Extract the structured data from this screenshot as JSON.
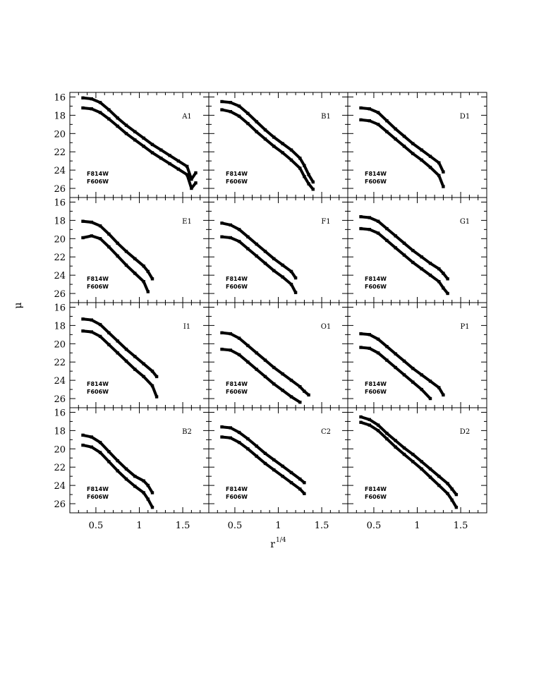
{
  "chart_data": {
    "type": "scatter",
    "xlabel": "r",
    "xlabel_superscript": "1/4",
    "ylabel": "μ",
    "xlim": [
      0.2,
      1.8
    ],
    "ylim": [
      27,
      15.5
    ],
    "y_inverted": true,
    "grid": false,
    "x_ticks": [
      "0.5",
      "1",
      "1.5"
    ],
    "x_tick_values": [
      0.5,
      1,
      1.5
    ],
    "y_ticks": [
      "16",
      "18",
      "20",
      "22",
      "24",
      "26"
    ],
    "y_tick_values": [
      16,
      18,
      20,
      22,
      24,
      26
    ],
    "panels": [
      {
        "name": "A1",
        "filters": [
          "F814W",
          "F606W"
        ],
        "series": [
          {
            "x": [
              0.35,
              0.45,
              0.55,
              0.65,
              0.75,
              0.85,
              0.95,
              1.05,
              1.15,
              1.25,
              1.35,
              1.45,
              1.55,
              1.6,
              1.65
            ],
            "y": [
              16.1,
              16.2,
              16.6,
              17.4,
              18.3,
              19.1,
              19.8,
              20.5,
              21.2,
              21.8,
              22.4,
              23.0,
              23.6,
              25.0,
              24.3
            ]
          },
          {
            "x": [
              0.35,
              0.45,
              0.55,
              0.65,
              0.75,
              0.85,
              0.95,
              1.05,
              1.15,
              1.25,
              1.35,
              1.45,
              1.55,
              1.6,
              1.65
            ],
            "y": [
              17.2,
              17.3,
              17.7,
              18.4,
              19.2,
              20.0,
              20.7,
              21.4,
              22.1,
              22.7,
              23.3,
              23.9,
              24.5,
              26.0,
              25.4
            ]
          }
        ]
      },
      {
        "name": "B1",
        "filters": [
          "F814W",
          "F606W"
        ],
        "series": [
          {
            "x": [
              0.35,
              0.45,
              0.55,
              0.65,
              0.75,
              0.85,
              0.95,
              1.05,
              1.15,
              1.25,
              1.3,
              1.35,
              1.4
            ],
            "y": [
              16.5,
              16.6,
              17.0,
              17.8,
              18.7,
              19.6,
              20.4,
              21.1,
              21.8,
              22.7,
              23.5,
              24.5,
              25.3
            ]
          },
          {
            "x": [
              0.35,
              0.45,
              0.55,
              0.65,
              0.75,
              0.85,
              0.95,
              1.05,
              1.15,
              1.25,
              1.3,
              1.35,
              1.4
            ],
            "y": [
              17.4,
              17.6,
              18.1,
              18.9,
              19.8,
              20.6,
              21.4,
              22.1,
              22.9,
              23.8,
              24.7,
              25.5,
              26.1
            ]
          }
        ]
      },
      {
        "name": "D1",
        "filters": [
          "F814W",
          "F606W"
        ],
        "series": [
          {
            "x": [
              0.35,
              0.45,
              0.55,
              0.65,
              0.75,
              0.85,
              0.95,
              1.05,
              1.15,
              1.25,
              1.3
            ],
            "y": [
              17.2,
              17.3,
              17.7,
              18.6,
              19.5,
              20.3,
              21.1,
              21.8,
              22.5,
              23.2,
              24.2
            ]
          },
          {
            "x": [
              0.35,
              0.45,
              0.55,
              0.65,
              0.75,
              0.85,
              0.95,
              1.05,
              1.15,
              1.25,
              1.3
            ],
            "y": [
              18.5,
              18.6,
              19.0,
              19.8,
              20.6,
              21.4,
              22.2,
              22.9,
              23.7,
              24.6,
              25.8
            ]
          }
        ]
      },
      {
        "name": "E1",
        "filters": [
          "F814W",
          "F606W"
        ],
        "series": [
          {
            "x": [
              0.35,
              0.45,
              0.55,
              0.65,
              0.75,
              0.85,
              0.95,
              1.05,
              1.1,
              1.15
            ],
            "y": [
              18.1,
              18.2,
              18.6,
              19.5,
              20.5,
              21.4,
              22.2,
              23.0,
              23.6,
              24.4
            ]
          },
          {
            "x": [
              0.35,
              0.45,
              0.55,
              0.65,
              0.75,
              0.85,
              0.95,
              1.05,
              1.1
            ],
            "y": [
              19.9,
              19.7,
              20.0,
              20.9,
              21.9,
              22.9,
              23.8,
              24.7,
              25.8
            ]
          }
        ]
      },
      {
        "name": "F1",
        "filters": [
          "F814W",
          "F606W"
        ],
        "series": [
          {
            "x": [
              0.35,
              0.45,
              0.55,
              0.65,
              0.75,
              0.85,
              0.95,
              1.05,
              1.15,
              1.2
            ],
            "y": [
              18.3,
              18.5,
              19.0,
              19.8,
              20.6,
              21.4,
              22.2,
              22.9,
              23.6,
              24.3
            ]
          },
          {
            "x": [
              0.35,
              0.45,
              0.55,
              0.65,
              0.75,
              0.85,
              0.95,
              1.05,
              1.15,
              1.2
            ],
            "y": [
              19.8,
              19.9,
              20.3,
              21.1,
              21.9,
              22.7,
              23.5,
              24.2,
              25.0,
              25.9
            ]
          }
        ]
      },
      {
        "name": "G1",
        "filters": [
          "F814W",
          "F606W"
        ],
        "series": [
          {
            "x": [
              0.35,
              0.45,
              0.55,
              0.65,
              0.75,
              0.85,
              0.95,
              1.05,
              1.15,
              1.25,
              1.3,
              1.35
            ],
            "y": [
              17.6,
              17.7,
              18.1,
              18.9,
              19.7,
              20.5,
              21.3,
              22.0,
              22.7,
              23.3,
              23.8,
              24.4
            ]
          },
          {
            "x": [
              0.35,
              0.45,
              0.55,
              0.65,
              0.75,
              0.85,
              0.95,
              1.05,
              1.15,
              1.25,
              1.3,
              1.35
            ],
            "y": [
              18.9,
              19.0,
              19.4,
              20.2,
              21.0,
              21.8,
              22.6,
              23.3,
              24.0,
              24.7,
              25.4,
              26.0
            ]
          }
        ]
      },
      {
        "name": "I1",
        "filters": [
          "F814W",
          "F606W"
        ],
        "series": [
          {
            "x": [
              0.35,
              0.45,
              0.55,
              0.65,
              0.75,
              0.85,
              0.95,
              1.05,
              1.15,
              1.2
            ],
            "y": [
              17.3,
              17.4,
              17.9,
              18.8,
              19.7,
              20.6,
              21.4,
              22.2,
              23.0,
              23.6
            ]
          },
          {
            "x": [
              0.35,
              0.45,
              0.55,
              0.65,
              0.75,
              0.85,
              0.95,
              1.05,
              1.15,
              1.2
            ],
            "y": [
              18.6,
              18.7,
              19.2,
              20.1,
              21.0,
              21.9,
              22.8,
              23.6,
              24.6,
              25.8
            ]
          }
        ]
      },
      {
        "name": "O1",
        "filters": [
          "F814W",
          "F606W"
        ],
        "series": [
          {
            "x": [
              0.35,
              0.45,
              0.55,
              0.65,
              0.75,
              0.85,
              0.95,
              1.05,
              1.15,
              1.25,
              1.3,
              1.35
            ],
            "y": [
              18.8,
              18.9,
              19.4,
              20.2,
              21.0,
              21.8,
              22.6,
              23.3,
              24.0,
              24.7,
              25.2,
              25.6
            ]
          },
          {
            "x": [
              0.35,
              0.45,
              0.55,
              0.65,
              0.75,
              0.85,
              0.95,
              1.05,
              1.15,
              1.25
            ],
            "y": [
              20.6,
              20.7,
              21.2,
              22.0,
              22.8,
              23.6,
              24.4,
              25.1,
              25.8,
              26.4
            ]
          }
        ]
      },
      {
        "name": "P1",
        "filters": [
          "F814W",
          "F606W"
        ],
        "series": [
          {
            "x": [
              0.35,
              0.45,
              0.55,
              0.65,
              0.75,
              0.85,
              0.95,
              1.05,
              1.15,
              1.25,
              1.3
            ],
            "y": [
              18.9,
              19.0,
              19.5,
              20.3,
              21.1,
              21.9,
              22.7,
              23.4,
              24.1,
              24.8,
              25.6
            ]
          },
          {
            "x": [
              0.35,
              0.45,
              0.55,
              0.65,
              0.75,
              0.85,
              0.95,
              1.05,
              1.15
            ],
            "y": [
              20.4,
              20.5,
              21.0,
              21.8,
              22.6,
              23.4,
              24.2,
              25.0,
              26.0
            ]
          }
        ]
      },
      {
        "name": "B2",
        "filters": [
          "F814W",
          "F606W"
        ],
        "series": [
          {
            "x": [
              0.35,
              0.45,
              0.55,
              0.65,
              0.75,
              0.85,
              0.95,
              1.05,
              1.1,
              1.15
            ],
            "y": [
              18.5,
              18.7,
              19.3,
              20.3,
              21.3,
              22.2,
              23.0,
              23.5,
              24.0,
              24.8
            ]
          },
          {
            "x": [
              0.35,
              0.45,
              0.55,
              0.65,
              0.75,
              0.85,
              0.95,
              1.05,
              1.1,
              1.15
            ],
            "y": [
              19.6,
              19.8,
              20.4,
              21.4,
              22.4,
              23.3,
              24.1,
              24.8,
              25.5,
              26.4
            ]
          }
        ]
      },
      {
        "name": "C2",
        "filters": [
          "F814W",
          "F606W"
        ],
        "series": [
          {
            "x": [
              0.35,
              0.45,
              0.55,
              0.65,
              0.75,
              0.85,
              0.95,
              1.05,
              1.15,
              1.25,
              1.3
            ],
            "y": [
              17.6,
              17.7,
              18.2,
              18.9,
              19.7,
              20.5,
              21.2,
              21.9,
              22.6,
              23.3,
              23.7
            ]
          },
          {
            "x": [
              0.35,
              0.45,
              0.55,
              0.65,
              0.75,
              0.85,
              0.95,
              1.05,
              1.15,
              1.25,
              1.3
            ],
            "y": [
              18.7,
              18.8,
              19.3,
              20.0,
              20.8,
              21.6,
              22.3,
              23.0,
              23.7,
              24.4,
              24.9
            ]
          }
        ]
      },
      {
        "name": "D2",
        "filters": [
          "F814W",
          "F606W"
        ],
        "series": [
          {
            "x": [
              0.35,
              0.45,
              0.55,
              0.65,
              0.75,
              0.85,
              0.95,
              1.05,
              1.15,
              1.25,
              1.35,
              1.4,
              1.45
            ],
            "y": [
              16.5,
              16.8,
              17.4,
              18.3,
              19.1,
              19.9,
              20.6,
              21.4,
              22.2,
              23.0,
              23.8,
              24.4,
              25.0
            ]
          },
          {
            "x": [
              0.35,
              0.45,
              0.55,
              0.65,
              0.75,
              0.85,
              0.95,
              1.05,
              1.15,
              1.25,
              1.35,
              1.4,
              1.45
            ],
            "y": [
              17.1,
              17.4,
              18.0,
              18.9,
              19.8,
              20.6,
              21.4,
              22.2,
              23.1,
              24.0,
              24.9,
              25.6,
              26.4
            ]
          }
        ]
      }
    ]
  }
}
